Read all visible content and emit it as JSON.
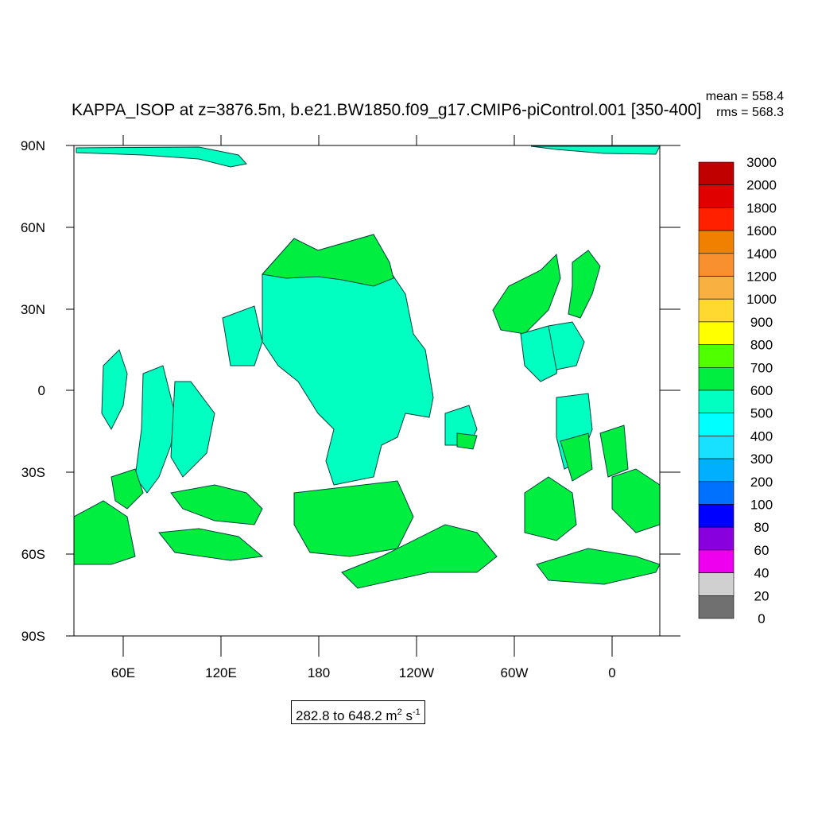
{
  "title": "KAPPA_ISOP at z=3876.5m, b.e21.BW1850.f09_g17.CMIP6-piControl.001 [350-400]",
  "stats": {
    "mean": "mean = 558.4",
    "rms": "rms = 568.3"
  },
  "range_label": {
    "text": "282.8 to 648.2 m",
    "unit_tail": " s"
  },
  "lat_labels": [
    "90N",
    "60N",
    "30N",
    "0",
    "30S",
    "60S",
    "90S"
  ],
  "lon_labels": [
    "60E",
    "120E",
    "180",
    "120W",
    "60W",
    "0"
  ],
  "colorbar": {
    "labels": [
      "3000",
      "2000",
      "1800",
      "1600",
      "1400",
      "1200",
      "1000",
      "900",
      "800",
      "700",
      "600",
      "500",
      "400",
      "300",
      "200",
      "100",
      "80",
      "60",
      "40",
      "20",
      "0"
    ],
    "colors": [
      "#c00000",
      "#e00000",
      "#ff2000",
      "#f08000",
      "#f89030",
      "#f8b040",
      "#ffd830",
      "#ffff00",
      "#50ff00",
      "#00ee40",
      "#00ffc0",
      "#00ffff",
      "#18e0ff",
      "#00b0ff",
      "#0070ff",
      "#0000ff",
      "#8800dd",
      "#ee00ee",
      "#d0d0d0",
      "#707070"
    ]
  },
  "field_colors": {
    "green": "#00ee40",
    "teal": "#00ffc0",
    "cyan": "#18e0ff",
    "blue": "#00b0ff"
  }
}
